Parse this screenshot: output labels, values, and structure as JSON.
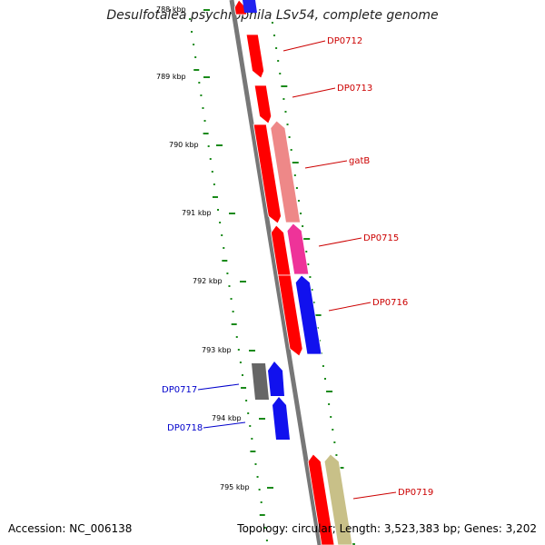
{
  "title": "Desulfotalea psychrophila LSv54, complete genome",
  "footer": {
    "accession_label": "Accession:",
    "accession": "NC_006138",
    "topology_label": "Topology:",
    "topology": "circular",
    "length_label": "Length:",
    "length": "3,523,383 bp",
    "genes_label": "Genes:",
    "genes": "3,202"
  },
  "colors": {
    "backbone": "#777777",
    "tick": "#1a8a1a",
    "label_red": "#cc0000",
    "label_blue": "#0000cc"
  },
  "ticks": [
    "788 kbp",
    "789 kbp",
    "790 kbp",
    "791 kbp",
    "792 kbp",
    "793 kbp",
    "794 kbp",
    "795 kbp"
  ],
  "features": [
    {
      "label": "DP0712",
      "color": "#ff0000",
      "strand": "-",
      "label_side": "right"
    },
    {
      "label": "DP0713",
      "color": "#ff0000",
      "strand": "-",
      "label_side": "right"
    },
    {
      "label": "gatB",
      "color": "#ee8888",
      "strand": "-",
      "label_side": "right"
    },
    {
      "label": "DP0715",
      "color": "#ee3399",
      "strand": "-",
      "label_side": "right"
    },
    {
      "label": "DP0716",
      "color": "#1111ee",
      "strand": "-",
      "label_side": "right"
    },
    {
      "label": "DP0717",
      "color": "#666666",
      "strand": "+",
      "label_side": "left"
    },
    {
      "label": "DP0718",
      "color": "#1111ee",
      "strand": "+",
      "label_side": "left"
    },
    {
      "label": "DP0719",
      "color": "#c8c088",
      "strand": "-",
      "label_side": "right"
    }
  ]
}
